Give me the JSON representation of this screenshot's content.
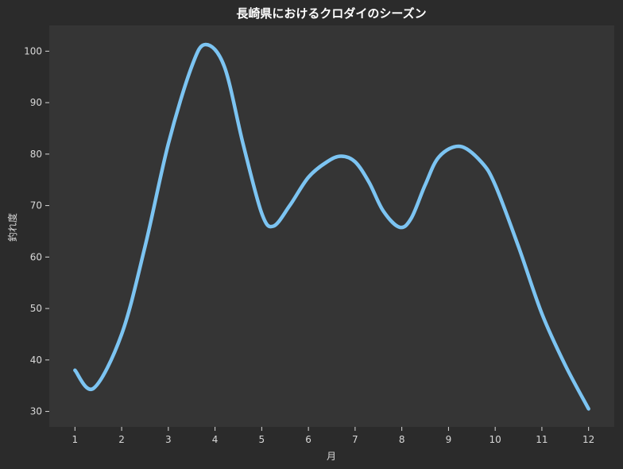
{
  "chart_data": {
    "type": "line",
    "title": "長崎県におけるクロダイのシーズン",
    "xlabel": "月",
    "ylabel": "釣れ度",
    "x": [
      1,
      2,
      3,
      4,
      5,
      6,
      7,
      8,
      9,
      10,
      11,
      12
    ],
    "x_ticks": [
      "1",
      "2",
      "3",
      "4",
      "5",
      "6",
      "7",
      "8",
      "9",
      "10",
      "11",
      "12"
    ],
    "y_ticks": [
      "30",
      "40",
      "50",
      "60",
      "70",
      "80",
      "90",
      "100"
    ],
    "xlim": [
      0.45,
      12.55
    ],
    "ylim": [
      27,
      105
    ],
    "grid": false,
    "curve": {
      "x": [
        1,
        1.4,
        2,
        2.5,
        3,
        3.5,
        3.8,
        4.2,
        4.6,
        5,
        5.25,
        5.6,
        6,
        6.4,
        6.7,
        7,
        7.3,
        7.6,
        7.95,
        8.2,
        8.5,
        8.8,
        9.25,
        9.7,
        10,
        10.5,
        11,
        11.5,
        12
      ],
      "y": [
        38,
        34.5,
        45,
        62,
        82,
        97,
        101.3,
        97,
        82,
        68.5,
        66,
        70,
        75.5,
        78.5,
        79.6,
        78.5,
        74.5,
        69,
        65.8,
        67.5,
        74,
        79.5,
        81.5,
        78.5,
        74,
        62,
        49,
        39,
        30.5
      ]
    },
    "line_color": "#7cc4f2",
    "colors": {
      "page_background": "#2b2b2b",
      "plot_background": "#353535",
      "text": "#d8d8d8"
    }
  }
}
